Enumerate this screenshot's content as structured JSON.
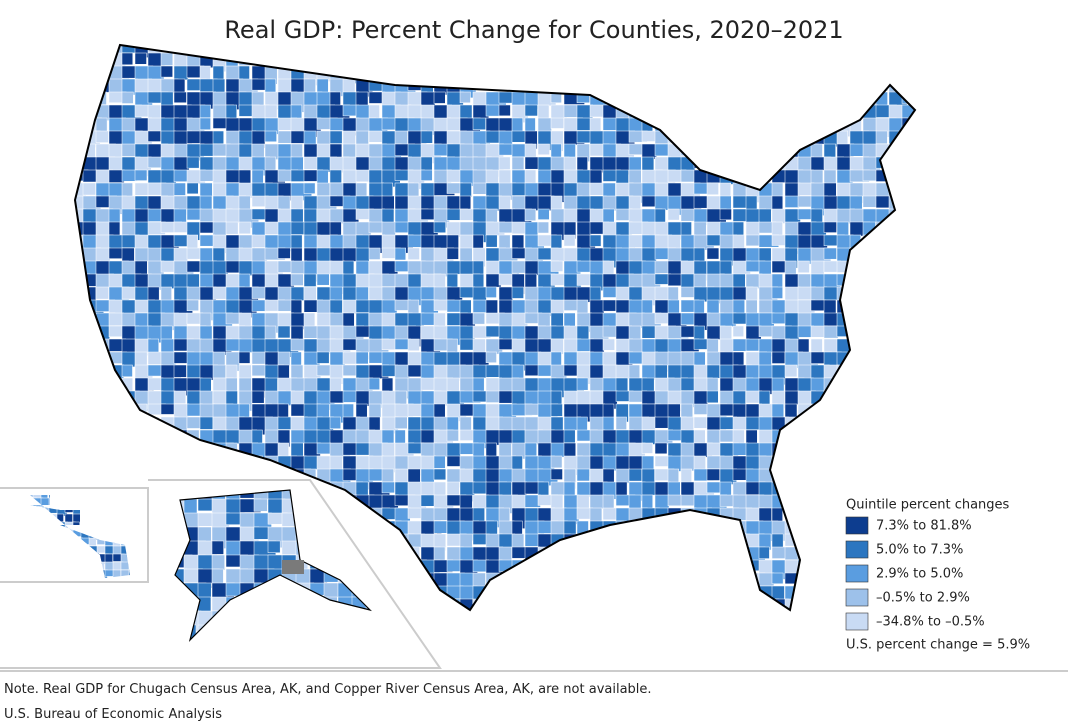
{
  "title": "Real GDP: Percent Change for Counties, 2020–2021",
  "legend": {
    "title": "Quintile percent changes",
    "items": [
      {
        "label": "7.3% to 81.8%",
        "color": "#0d3d8f"
      },
      {
        "label": "5.0% to 7.3%",
        "color": "#2c76c0"
      },
      {
        "label": "2.9% to 5.0%",
        "color": "#5a9de0"
      },
      {
        "label": "–0.5% to 2.9%",
        "color": "#9dc1ea"
      },
      {
        "label": "–34.8% to –0.5%",
        "color": "#c9dbf4"
      }
    ],
    "us_change": "U.S. percent change = 5.9%"
  },
  "note": "Note. Real GDP for Chugach Census Area, AK, and Copper River Census Area, AK, are not available.",
  "source": "U.S. Bureau of Economic Analysis"
}
